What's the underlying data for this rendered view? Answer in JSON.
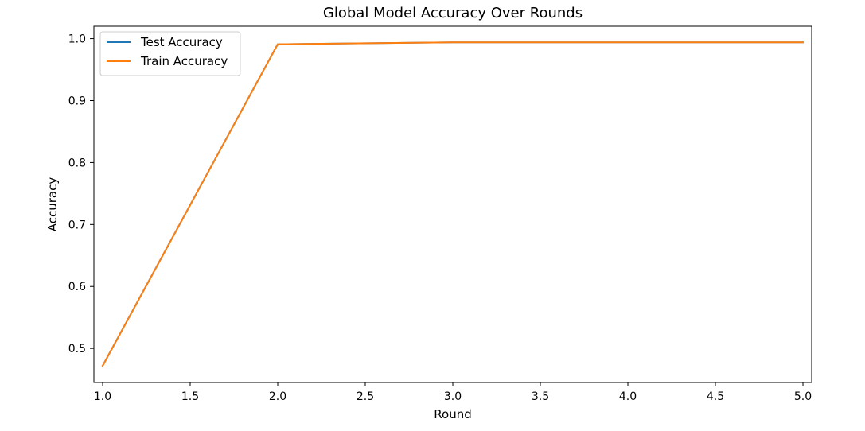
{
  "chart_data": {
    "type": "line",
    "title": "Global Model Accuracy Over Rounds",
    "xlabel": "Round",
    "ylabel": "Accuracy",
    "xlim": [
      0.95,
      5.05
    ],
    "ylim": [
      0.445,
      1.02
    ],
    "xticks": [
      1.0,
      1.5,
      2.0,
      2.5,
      3.0,
      3.5,
      4.0,
      4.5,
      5.0
    ],
    "xtick_labels": [
      "1.0",
      "1.5",
      "2.0",
      "2.5",
      "3.0",
      "3.5",
      "4.0",
      "4.5",
      "5.0"
    ],
    "yticks": [
      0.5,
      0.6,
      0.7,
      0.8,
      0.9,
      1.0
    ],
    "ytick_labels": [
      "0.5",
      "0.6",
      "0.7",
      "0.8",
      "0.9",
      "1.0"
    ],
    "grid": false,
    "legend_position": "top-left",
    "x": [
      1,
      2,
      3,
      4,
      5
    ],
    "series": [
      {
        "name": "Test Accuracy",
        "color": "#1f77b4",
        "values": [
          0.472,
          0.991,
          0.994,
          0.994,
          0.994
        ]
      },
      {
        "name": "Train Accuracy",
        "color": "#ff7f0e",
        "values": [
          0.472,
          0.991,
          0.994,
          0.994,
          0.994
        ]
      }
    ]
  }
}
